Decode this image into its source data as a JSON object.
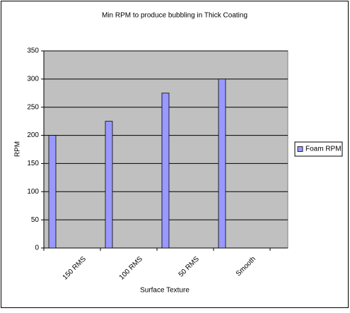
{
  "chart_data": {
    "type": "bar",
    "title": "Min RPM to produce bubbling in Thick Coating",
    "x_label": "Surface Texture",
    "y_label": "RPM",
    "categories": [
      "150 RMS",
      "100 RMS",
      "50 RMS",
      "Smooth"
    ],
    "series": [
      {
        "name": "Foam RPM",
        "color": "#9999ff",
        "values": [
          200,
          225,
          275,
          300
        ]
      }
    ],
    "ylim": [
      0,
      350
    ],
    "yticks": [
      0,
      50,
      100,
      150,
      200,
      250,
      300,
      350
    ],
    "grid": true,
    "legend": "right"
  }
}
